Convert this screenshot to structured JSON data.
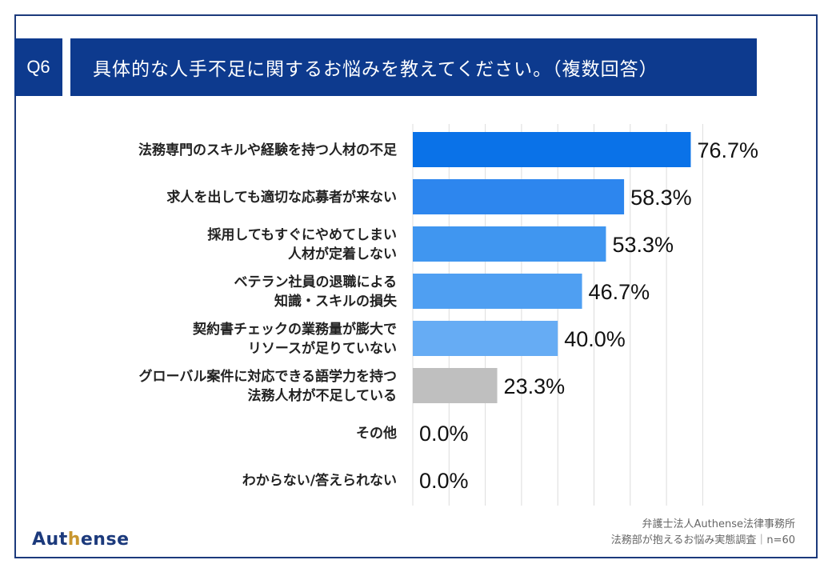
{
  "header": {
    "question_no": "Q6",
    "title": "具体的な人手不足に関するお悩みを教えてください。（複数回答）"
  },
  "chart_data": {
    "type": "bar",
    "orientation": "horizontal",
    "unit": "%",
    "xlim": [
      0,
      80
    ],
    "grid": true,
    "categories": [
      [
        "法務専門のスキルや経験を持つ人材の不足"
      ],
      [
        "求人を出しても適切な応募者が来ない"
      ],
      [
        "採用してもすぐにやめてしまい",
        "人材が定着しない"
      ],
      [
        "ベテラン社員の退職による",
        "知識・スキルの損失"
      ],
      [
        "契約書チェックの業務量が膨大で",
        "リソースが足りていない"
      ],
      [
        "グローバル案件に対応できる語学力を持つ",
        "法務人材が不足している"
      ],
      [
        "その他"
      ],
      [
        "わからない/答えられない"
      ]
    ],
    "values": [
      76.7,
      58.3,
      53.3,
      46.7,
      40.0,
      23.3,
      0.0,
      0.0
    ],
    "value_labels": [
      "76.7%",
      "58.3%",
      "53.3%",
      "46.7%",
      "40.0%",
      "23.3%",
      "0.0%",
      "0.0%"
    ],
    "bar_colors": [
      "#0a72e8",
      "#2d86ee",
      "#4096f0",
      "#4f9ff2",
      "#66acf4",
      "#bfbfbf",
      "#bfbfbf",
      "#bfbfbf"
    ]
  },
  "source": {
    "line1": "弁護士法人Authense法律事務所",
    "line2": "法務部が抱えるお悩み実態調査｜n=60"
  },
  "logo": {
    "text_before": "Aut",
    "accent": "h",
    "text_after": "ense"
  }
}
